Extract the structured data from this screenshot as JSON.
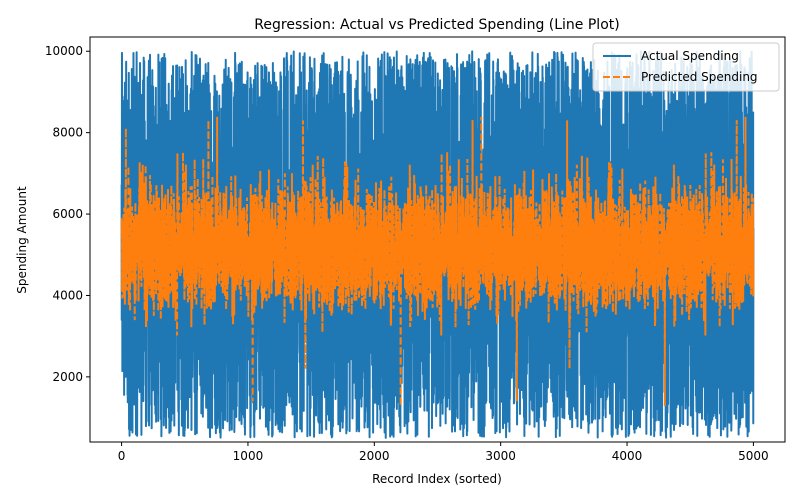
{
  "chart_data": {
    "type": "line",
    "title": "Regression: Actual vs Predicted Spending (Line Plot)",
    "xlabel": "Record Index (sorted)",
    "ylabel": "Spending Amount",
    "xlim": [
      -250,
      5250
    ],
    "ylim": [
      400,
      10350
    ],
    "xticks": [
      0,
      1000,
      2000,
      3000,
      4000,
      5000
    ],
    "yticks": [
      2000,
      4000,
      6000,
      8000,
      10000
    ],
    "grid": false,
    "legend_position": "top-right",
    "series": [
      {
        "name": "Actual Spending",
        "color": "#1f77b4",
        "line_style": "solid",
        "x_range": [
          0,
          5000
        ],
        "point_count": 5000,
        "value_range": [
          500,
          10000
        ],
        "typical_band": [
          1000,
          9800
        ]
      },
      {
        "name": "Predicted Spending",
        "color": "#ff7f0e",
        "line_style": "dashed",
        "x_range": [
          0,
          5000
        ],
        "point_count": 5000,
        "value_range": [
          1200,
          8500
        ],
        "typical_band": [
          3500,
          7000
        ],
        "center": 5200
      }
    ]
  }
}
